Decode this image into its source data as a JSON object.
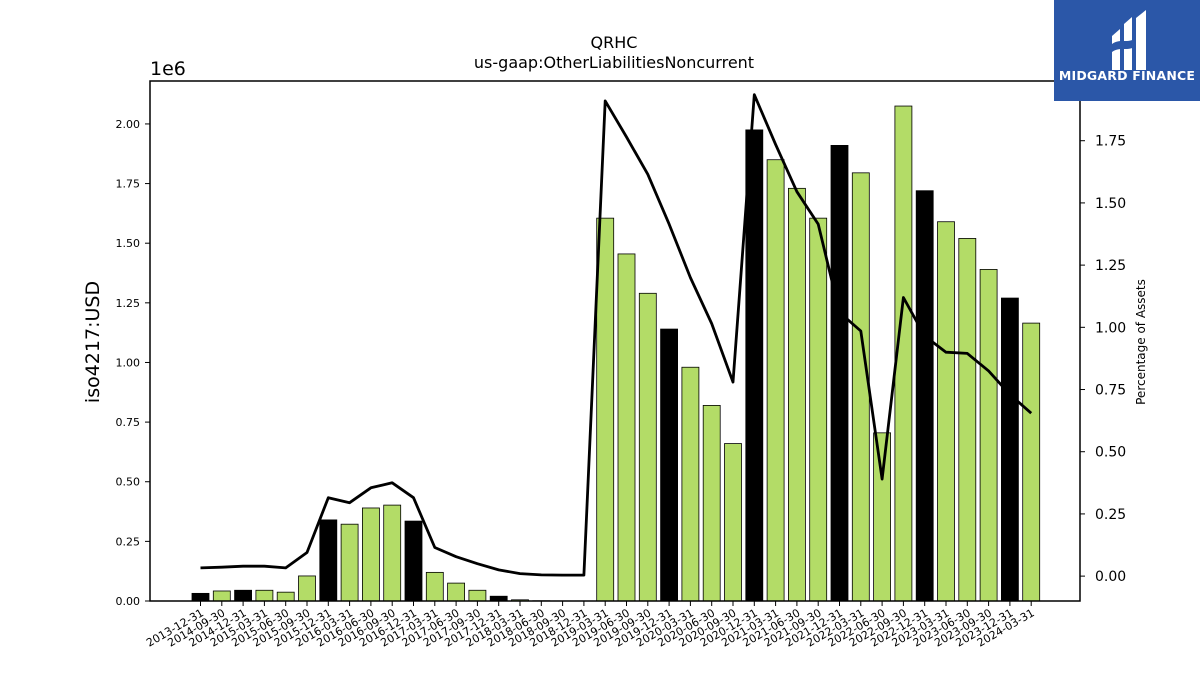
{
  "brand": {
    "name": "MIDGARD FINANCE",
    "bg_color": "#2b57a8"
  },
  "chart_data": {
    "type": "bar",
    "title": "QRHC",
    "subtitle": "us-gaap:OtherLiabilitiesNoncurrent",
    "ylabel": "iso4217:USD",
    "y_offset_label": "1e6",
    "y2label": "Percentage of Assets",
    "ylim": [
      0,
      2.18
    ],
    "y2lim": [
      -0.1,
      1.99
    ],
    "yticks": [
      "0.00",
      "0.25",
      "0.50",
      "0.75",
      "1.00",
      "1.25",
      "1.50",
      "1.75",
      "2.00"
    ],
    "y2ticks": [
      "0.00",
      "0.25",
      "0.50",
      "0.75",
      "1.00",
      "1.25",
      "1.50",
      "1.75"
    ],
    "categories": [
      "2013-12-31",
      "2014-09-30",
      "2014-12-31",
      "2015-03-31",
      "2015-06-30",
      "2015-09-30",
      "2015-12-31",
      "2016-03-31",
      "2016-06-30",
      "2016-09-30",
      "2016-12-31",
      "2017-03-31",
      "2017-06-30",
      "2017-09-30",
      "2017-12-31",
      "2018-03-31",
      "2018-06-30",
      "2018-09-30",
      "2018-12-31",
      "2019-03-31",
      "2019-06-30",
      "2019-09-30",
      "2019-12-31",
      "2020-03-31",
      "2020-06-30",
      "2020-09-30",
      "2020-12-31",
      "2021-03-31",
      "2021-06-30",
      "2021-09-30",
      "2021-12-31",
      "2022-03-31",
      "2022-06-30",
      "2022-09-30",
      "2022-12-31",
      "2023-03-31",
      "2023-06-30",
      "2023-09-30",
      "2023-12-31",
      "2024-03-31"
    ],
    "values": [
      0.032,
      0.042,
      0.045,
      0.045,
      0.037,
      0.105,
      0.34,
      0.322,
      0.39,
      0.402,
      0.335,
      0.12,
      0.075,
      0.045,
      0.02,
      0.005,
      0.001,
      0.0005,
      0.0005,
      1.605,
      1.455,
      1.29,
      1.14,
      0.98,
      0.82,
      0.66,
      1.975,
      1.85,
      1.73,
      1.605,
      1.91,
      1.795,
      0.705,
      2.075,
      1.72,
      1.59,
      1.52,
      1.39,
      1.27,
      1.165
    ],
    "bar_colors": [
      "#000000",
      "#b3dc67",
      "#000000",
      "#b3dc67",
      "#b3dc67",
      "#b3dc67",
      "#000000",
      "#b3dc67",
      "#b3dc67",
      "#b3dc67",
      "#000000",
      "#b3dc67",
      "#b3dc67",
      "#b3dc67",
      "#000000",
      "#b3dc67",
      "#b3dc67",
      "#b3dc67",
      "#000000",
      "#b3dc67",
      "#b3dc67",
      "#b3dc67",
      "#000000",
      "#b3dc67",
      "#b3dc67",
      "#b3dc67",
      "#000000",
      "#b3dc67",
      "#b3dc67",
      "#b3dc67",
      "#000000",
      "#b3dc67",
      "#b3dc67",
      "#b3dc67",
      "#000000",
      "#b3dc67",
      "#b3dc67",
      "#b3dc67",
      "#000000",
      "#b3dc67"
    ],
    "pct_of_assets": [
      0.033,
      0.036,
      0.04,
      0.04,
      0.033,
      0.095,
      0.315,
      0.295,
      0.355,
      0.375,
      0.315,
      0.115,
      0.078,
      0.05,
      0.025,
      0.01,
      0.005,
      0.004,
      0.004,
      1.91,
      1.765,
      1.615,
      1.415,
      1.2,
      1.015,
      0.78,
      1.935,
      1.735,
      1.545,
      1.415,
      1.06,
      0.985,
      0.39,
      1.12,
      0.965,
      0.9,
      0.895,
      0.825,
      0.73,
      0.655
    ],
    "line_color": "#000000",
    "grid": false
  }
}
